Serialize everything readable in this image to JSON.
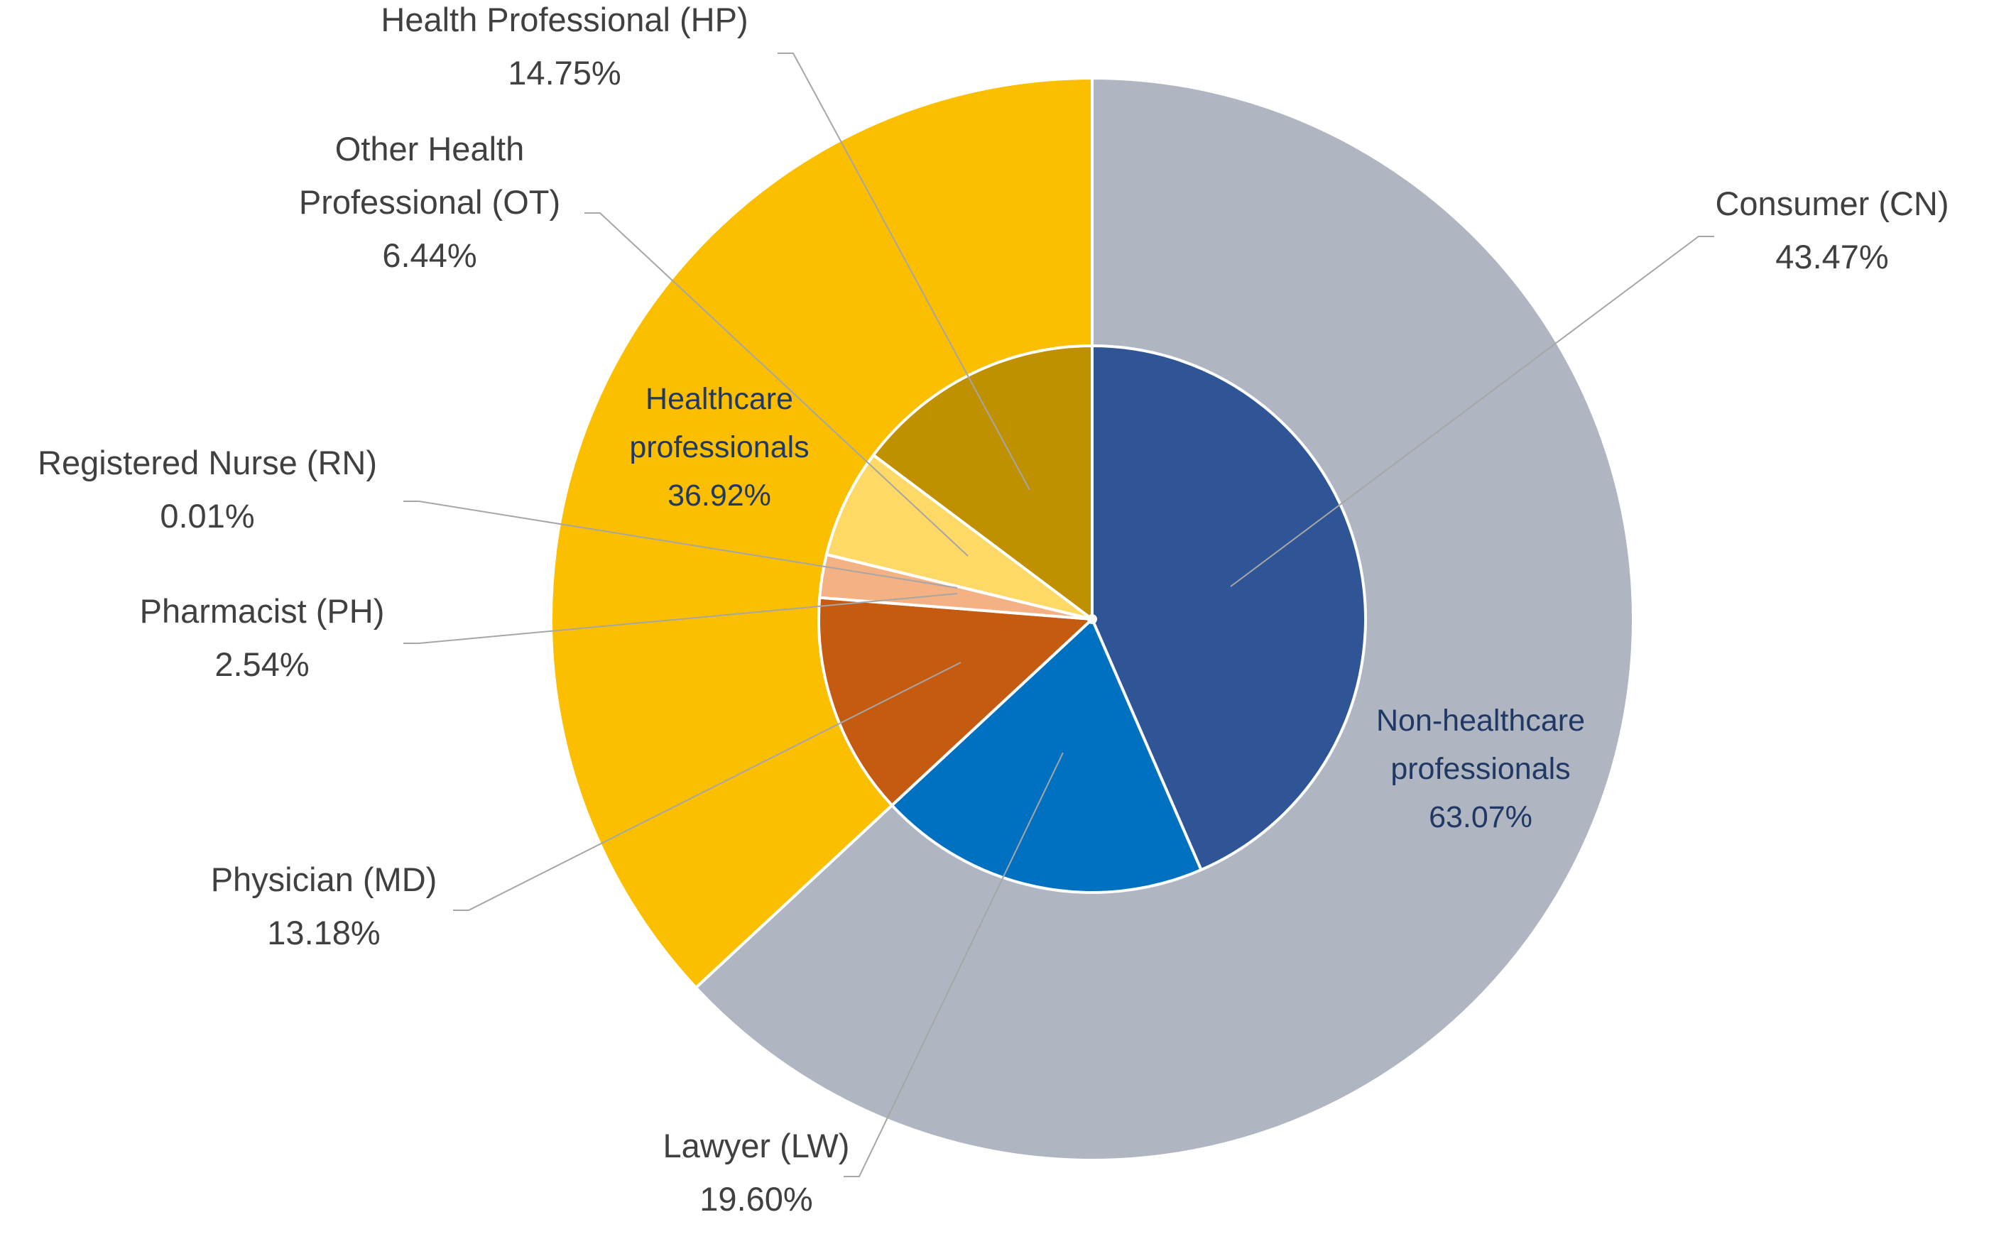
{
  "chart_data": {
    "type": "pie",
    "variant": "nested-donut",
    "rings": [
      {
        "ring": "outer",
        "slices": [
          {
            "label": "Non-healthcare professionals",
            "value": 63.07,
            "value_label": "63.07%",
            "color": "#afb5c1"
          },
          {
            "label": "Healthcare professionals",
            "value": 36.92,
            "value_label": "36.92%",
            "color": "#fbbf00"
          }
        ]
      },
      {
        "ring": "inner",
        "slices": [
          {
            "label": "Consumer (CN)",
            "value": 43.47,
            "value_label": "43.47%",
            "color": "#2f5597"
          },
          {
            "label": "Lawyer (LW)",
            "value": 19.6,
            "value_label": "19.60%",
            "color": "#0070c0"
          },
          {
            "label": "Physician (MD)",
            "value": 13.18,
            "value_label": "13.18%",
            "color": "#c55a11"
          },
          {
            "label": "Pharmacist (PH)",
            "value": 2.54,
            "value_label": "2.54%",
            "color": "#f4b183"
          },
          {
            "label": "Registered Nurse (RN)",
            "value": 0.01,
            "value_label": "0.01%",
            "color": "#f8cbad"
          },
          {
            "label": "Other Health Professional (OT)",
            "value": 6.44,
            "value_label": "6.44%",
            "color": "#ffd966"
          },
          {
            "label": "Health Professional (HP)",
            "value": 14.75,
            "value_label": "14.75%",
            "color": "#bf9000"
          }
        ]
      }
    ],
    "annotations": {
      "Consumer (CN)": [
        "Consumer (CN)",
        "43.47%"
      ],
      "Lawyer (LW)": [
        "Lawyer (LW)",
        "19.60%"
      ],
      "Physician (MD)": [
        "Physician (MD)",
        "13.18%"
      ],
      "Pharmacist (PH)": [
        "Pharmacist (PH)",
        "2.54%"
      ],
      "Registered Nurse (RN)": [
        "Registered Nurse (RN)",
        "0.01%"
      ],
      "Other Health Professional (OT)": [
        "Other Health",
        "Professional (OT)",
        "6.44%"
      ],
      "Health Professional (HP)": [
        "Health Professional (HP)",
        "14.75%"
      ],
      "Non-healthcare professionals": [
        "Non-healthcare",
        "professionals",
        "63.07%"
      ],
      "Healthcare professionals": [
        "Healthcare",
        "professionals",
        "36.92%"
      ]
    }
  }
}
